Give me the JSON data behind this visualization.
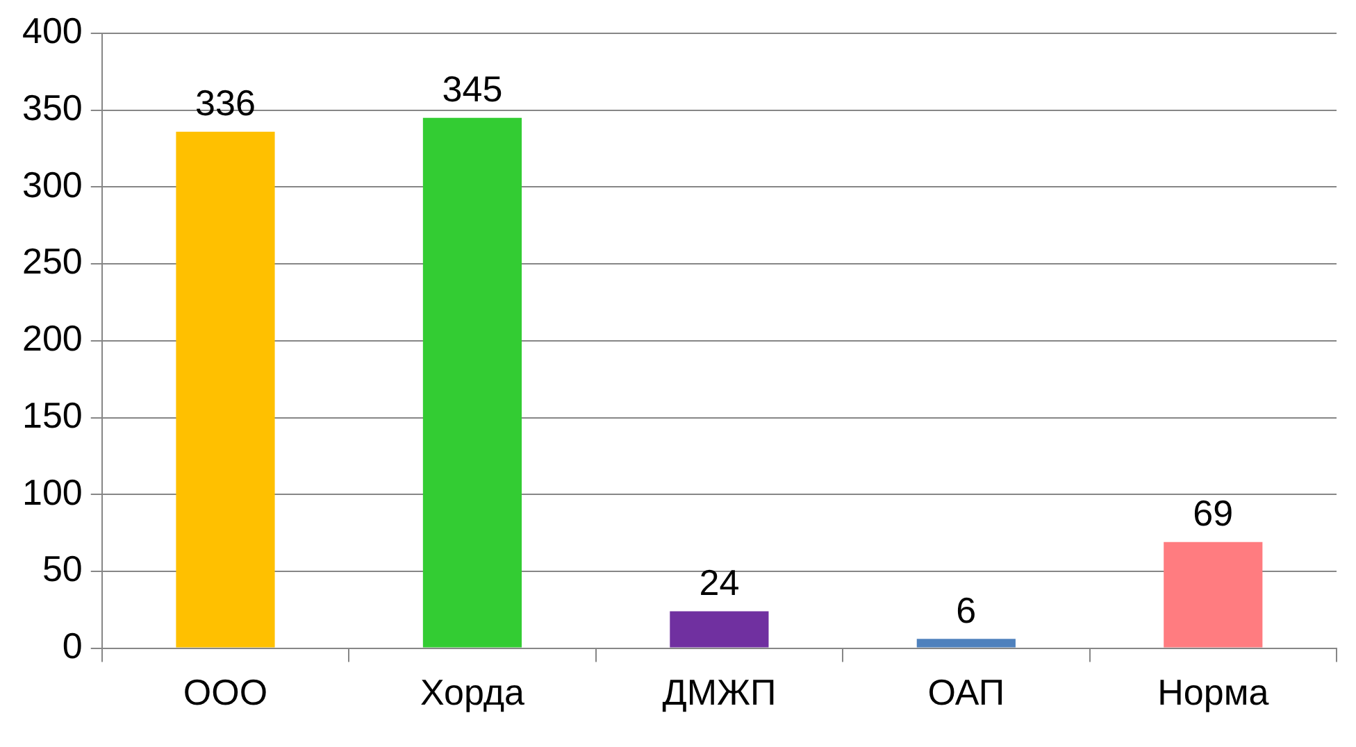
{
  "chart_data": {
    "type": "bar",
    "categories": [
      "ООО",
      "Хорда",
      "ДМЖП",
      "ОАП",
      "Норма"
    ],
    "values": [
      336,
      345,
      24,
      6,
      69
    ],
    "colors": [
      "#ffc000",
      "#33cc33",
      "#7030a0",
      "#4f81bd",
      "#ff7c80"
    ],
    "ylim": [
      0,
      400
    ],
    "yticks": [
      0,
      50,
      100,
      150,
      200,
      250,
      300,
      350,
      400
    ],
    "grid": "y",
    "data_labels": true,
    "legend": false
  }
}
